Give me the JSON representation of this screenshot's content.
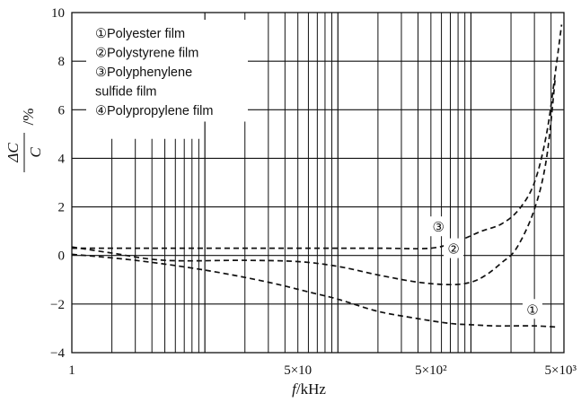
{
  "chart_data": {
    "type": "line",
    "x_scale": "log",
    "xlim": [
      1,
      5000
    ],
    "ylim": [
      -4,
      10
    ],
    "grid": true,
    "xlabel": {
      "var": "f",
      "unit": "/kHz"
    },
    "ylabel": {
      "numerator": "ΔC",
      "denominator": "C",
      "unit": "/%"
    },
    "x_tick_labels": [
      "1",
      "5×10",
      "5×10²",
      "5×10³"
    ],
    "x_tick_values": [
      1,
      50,
      500,
      5000
    ],
    "y_ticks": [
      -4,
      -2,
      0,
      2,
      4,
      6,
      8,
      10
    ],
    "legend": {
      "placement": "top-left",
      "entries": [
        "①Polyester film",
        "②Polystyrene film",
        "③Polyphenylene",
        "sulfide film",
        "④Polypropylene film"
      ]
    },
    "series": [
      {
        "name": "①Polyester film",
        "marker": "①",
        "marker_at": [
          2900,
          -2.2
        ],
        "line_style": "dashed",
        "x": [
          1,
          3,
          10,
          30,
          60,
          100,
          200,
          400,
          700,
          1000,
          1500,
          2000,
          3000,
          4500
        ],
        "y": [
          0.05,
          -0.2,
          -0.6,
          -1.1,
          -1.5,
          -1.8,
          -2.3,
          -2.6,
          -2.8,
          -2.85,
          -2.9,
          -2.9,
          -2.9,
          -2.95
        ]
      },
      {
        "name": "②Polystyrene film",
        "marker": "②",
        "marker_at": [
          740,
          0.3
        ],
        "line_style": "dashed",
        "x": [
          1,
          2,
          5,
          20,
          50,
          100,
          200,
          400,
          700,
          1000,
          1300,
          1700,
          2200,
          3000,
          3700,
          4300
        ],
        "y": [
          0.35,
          0.1,
          -0.2,
          -0.2,
          -0.25,
          -0.45,
          -0.8,
          -1.1,
          -1.2,
          -1.1,
          -0.8,
          -0.3,
          0.3,
          1.9,
          4.0,
          7.3
        ]
      },
      {
        "name": "③Polyphenylene sulfide film",
        "marker": "③",
        "marker_at": [
          570,
          1.2
        ],
        "line_style": "dashed",
        "x": [
          1,
          3,
          10,
          50,
          200,
          500,
          800,
          1200,
          1700,
          2300,
          3000,
          3700,
          4300,
          4800
        ],
        "y": [
          0.3,
          0.3,
          0.3,
          0.3,
          0.3,
          0.3,
          0.6,
          1.0,
          1.3,
          1.9,
          3.0,
          5.0,
          7.5,
          9.5
        ]
      }
    ]
  }
}
